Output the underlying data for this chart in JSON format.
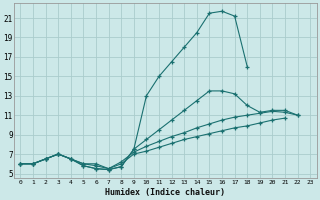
{
  "xlabel": "Humidex (Indice chaleur)",
  "ylabel": "",
  "background_color": "#cce8e8",
  "grid_color": "#aacccc",
  "line_color": "#1a7070",
  "xlim": [
    -0.5,
    23.5
  ],
  "ylim": [
    4.5,
    22.5
  ],
  "xticks": [
    0,
    1,
    2,
    3,
    4,
    5,
    6,
    7,
    8,
    9,
    10,
    11,
    12,
    13,
    14,
    15,
    16,
    17,
    18,
    19,
    20,
    21,
    22,
    23
  ],
  "yticks": [
    5,
    7,
    9,
    11,
    13,
    15,
    17,
    19,
    21
  ],
  "series": [
    {
      "x": [
        0,
        1,
        2,
        3,
        4,
        5,
        6,
        7,
        8,
        9,
        10,
        11,
        12,
        13,
        14,
        15,
        16,
        17,
        18
      ],
      "y": [
        6.0,
        6.0,
        6.5,
        7.0,
        6.5,
        5.8,
        5.5,
        5.4,
        5.7,
        7.5,
        13.0,
        15.0,
        16.5,
        18.0,
        19.5,
        21.5,
        21.7,
        21.2,
        16.0
      ]
    },
    {
      "x": [
        0,
        1,
        2,
        3,
        4,
        5,
        6,
        7,
        8,
        9,
        10,
        11,
        12,
        13,
        14,
        15,
        16,
        17,
        18,
        19,
        20,
        21,
        22
      ],
      "y": [
        6.0,
        6.0,
        6.5,
        7.0,
        6.5,
        5.8,
        5.5,
        5.4,
        5.7,
        7.5,
        8.5,
        9.5,
        10.5,
        11.5,
        12.5,
        13.5,
        13.5,
        13.2,
        12.0,
        11.3,
        11.5,
        11.5,
        11.0
      ]
    },
    {
      "x": [
        0,
        1,
        2,
        3,
        4,
        5,
        6,
        7,
        8,
        9,
        10,
        11,
        12,
        13,
        14,
        15,
        16,
        17,
        18,
        19,
        20,
        21,
        22
      ],
      "y": [
        6.0,
        6.0,
        6.5,
        7.0,
        6.5,
        6.0,
        5.8,
        5.5,
        6.2,
        7.2,
        7.8,
        8.3,
        8.8,
        9.2,
        9.7,
        10.1,
        10.5,
        10.8,
        11.0,
        11.2,
        11.4,
        11.3,
        11.0
      ]
    },
    {
      "x": [
        0,
        1,
        2,
        3,
        4,
        5,
        6,
        7,
        8,
        9,
        10,
        11,
        12,
        13,
        14,
        15,
        16,
        17,
        18,
        19,
        20,
        21
      ],
      "y": [
        6.0,
        6.0,
        6.5,
        7.0,
        6.5,
        6.0,
        6.0,
        5.5,
        6.0,
        7.0,
        7.3,
        7.7,
        8.1,
        8.5,
        8.8,
        9.1,
        9.4,
        9.7,
        9.9,
        10.2,
        10.5,
        10.7
      ]
    }
  ]
}
